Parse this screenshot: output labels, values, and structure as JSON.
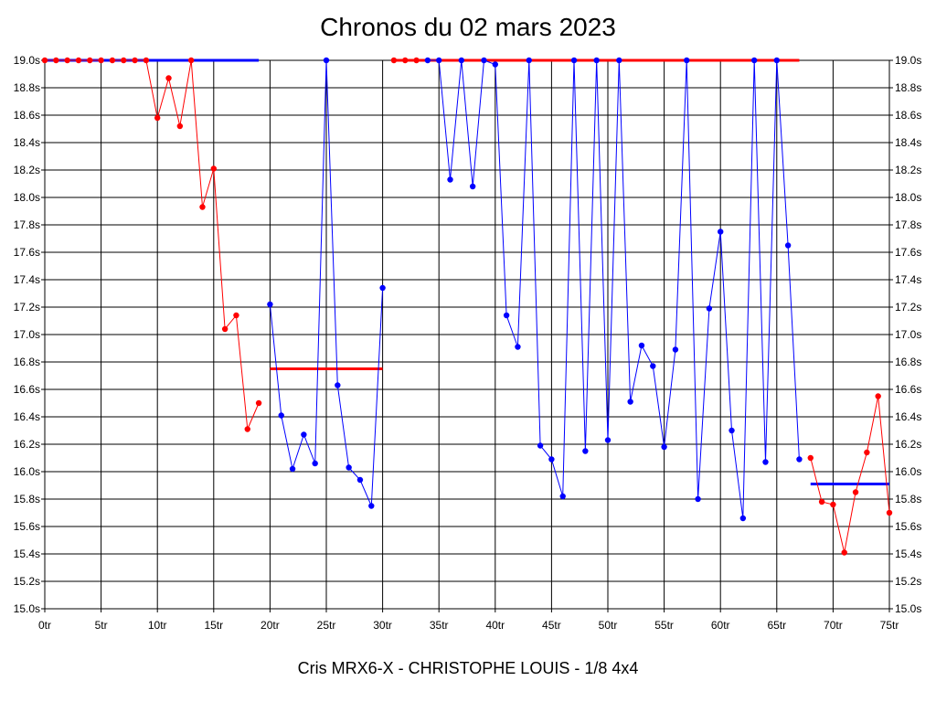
{
  "chart_data": {
    "type": "line",
    "title": "Chronos du 02 mars 2023",
    "footer": "Cris MRX6-X - CHRISTOPHE LOUIS - 1/8 4x4",
    "x_range": [
      0,
      75
    ],
    "y_range": [
      15.0,
      19.0
    ],
    "x_ticks": [
      "0tr",
      "5tr",
      "10tr",
      "15tr",
      "20tr",
      "25tr",
      "30tr",
      "35tr",
      "40tr",
      "45tr",
      "50tr",
      "55tr",
      "60tr",
      "65tr",
      "70tr",
      "75tr"
    ],
    "y_ticks": [
      "15.0s",
      "15.2s",
      "15.4s",
      "15.6s",
      "15.8s",
      "16.0s",
      "16.2s",
      "16.4s",
      "16.6s",
      "16.8s",
      "17.0s",
      "17.2s",
      "17.4s",
      "17.6s",
      "17.8s",
      "18.0s",
      "18.2s",
      "18.4s",
      "18.6s",
      "18.8s",
      "19.0s"
    ],
    "grid": true,
    "colors": {
      "red": "#ff0000",
      "blue": "#0000ff"
    },
    "series": [
      {
        "color": "red",
        "x": [
          0,
          1,
          2,
          3,
          4,
          5
        ],
        "y": [
          19.0,
          19.0,
          19.0,
          19.0,
          19.0,
          19.0
        ]
      },
      {
        "color": "red",
        "x": [
          6,
          7,
          8,
          9,
          10,
          11,
          12,
          13,
          14,
          15,
          16,
          17,
          18,
          19
        ],
        "y": [
          19.0,
          19.0,
          19.0,
          19.0,
          18.58,
          18.87,
          18.52,
          19.0,
          17.93,
          18.21,
          17.04,
          17.14,
          16.31,
          16.5
        ]
      },
      {
        "color": "blue",
        "x": [
          20,
          21,
          22,
          23,
          24,
          25,
          26,
          27,
          28,
          29,
          30
        ],
        "y": [
          17.22,
          16.41,
          16.02,
          16.27,
          16.06,
          19.0,
          16.63,
          16.03,
          15.94,
          15.75,
          17.34
        ]
      },
      {
        "color": "red",
        "x": [
          31,
          32,
          33
        ],
        "y": [
          19.0,
          19.0,
          19.0
        ]
      },
      {
        "color": "blue",
        "x": [
          34,
          35,
          36,
          37,
          38,
          39,
          40,
          41,
          42,
          43,
          44,
          45,
          46,
          47,
          48,
          49,
          50,
          51,
          52,
          53,
          54,
          55,
          56,
          57,
          58,
          59,
          60,
          61,
          62,
          63,
          64,
          65,
          66,
          67
        ],
        "y": [
          19.0,
          19.0,
          18.13,
          19.0,
          18.08,
          19.0,
          18.97,
          17.14,
          16.91,
          19.0,
          16.19,
          16.09,
          15.82,
          19.0,
          16.15,
          19.0,
          16.23,
          19.0,
          16.51,
          16.92,
          16.77,
          16.18,
          16.89,
          19.0,
          15.8,
          17.19,
          17.75,
          16.3,
          15.66,
          19.0,
          16.07,
          19.0,
          17.65,
          16.09
        ]
      },
      {
        "color": "red",
        "x": [
          68,
          69,
          70,
          71,
          72,
          73,
          74,
          75
        ],
        "y": [
          16.1,
          15.78,
          15.76,
          15.41,
          15.85,
          16.14,
          16.55,
          15.7
        ]
      }
    ],
    "averages": [
      {
        "color": "blue",
        "x": [
          0,
          19
        ],
        "y": 19.0
      },
      {
        "color": "red",
        "x": [
          20,
          30
        ],
        "y": 16.75
      },
      {
        "color": "red",
        "x": [
          31,
          67
        ],
        "y": 19.0
      },
      {
        "color": "blue",
        "x": [
          68,
          75
        ],
        "y": 15.91
      }
    ]
  }
}
